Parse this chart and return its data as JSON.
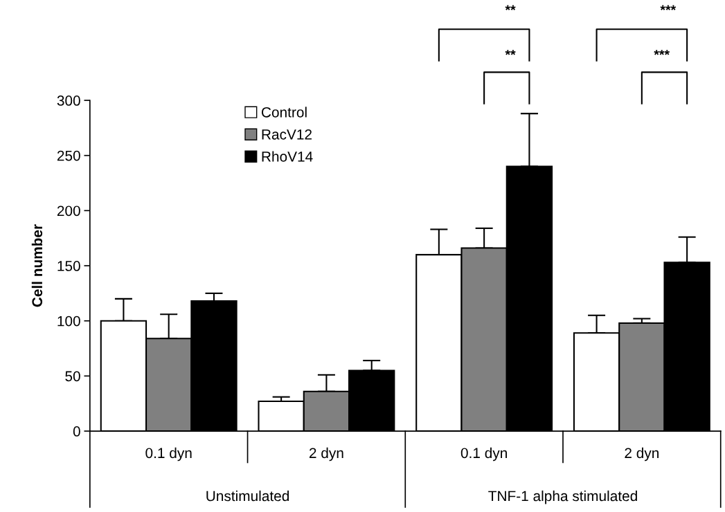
{
  "chart_data": {
    "type": "bar",
    "ylabel": "Cell number",
    "categories": [
      "0.1 dyn",
      "2 dyn",
      "0.1 dyn",
      "2 dyn"
    ],
    "series": [
      {
        "name": "Control",
        "color": "#ffffff",
        "values": [
          100,
          27,
          160,
          89
        ],
        "errors": [
          [
            100,
            120
          ],
          [
            27,
            31
          ],
          [
            160,
            183
          ],
          [
            89,
            105
          ]
        ]
      },
      {
        "name": "RacV12",
        "color": "#808080",
        "values": [
          84,
          36,
          166,
          98
        ],
        "errors": [
          [
            84,
            106
          ],
          [
            36,
            51
          ],
          [
            166,
            184
          ],
          [
            98,
            102
          ]
        ]
      },
      {
        "name": "RhoV14",
        "color": "#000000",
        "values": [
          118,
          55,
          240,
          153
        ],
        "errors": [
          [
            118,
            125
          ],
          [
            55,
            64
          ],
          [
            240,
            288
          ],
          [
            153,
            176
          ]
        ]
      }
    ],
    "ylim": [
      0,
      300
    ],
    "yticks": [
      0,
      50,
      100,
      150,
      200,
      250,
      300
    ],
    "legend": "top",
    "grid": false,
    "annotations": [
      "Unstimulated",
      "TNF-1 alpha stimulated",
      "**",
      "**",
      "***",
      "***"
    ]
  }
}
